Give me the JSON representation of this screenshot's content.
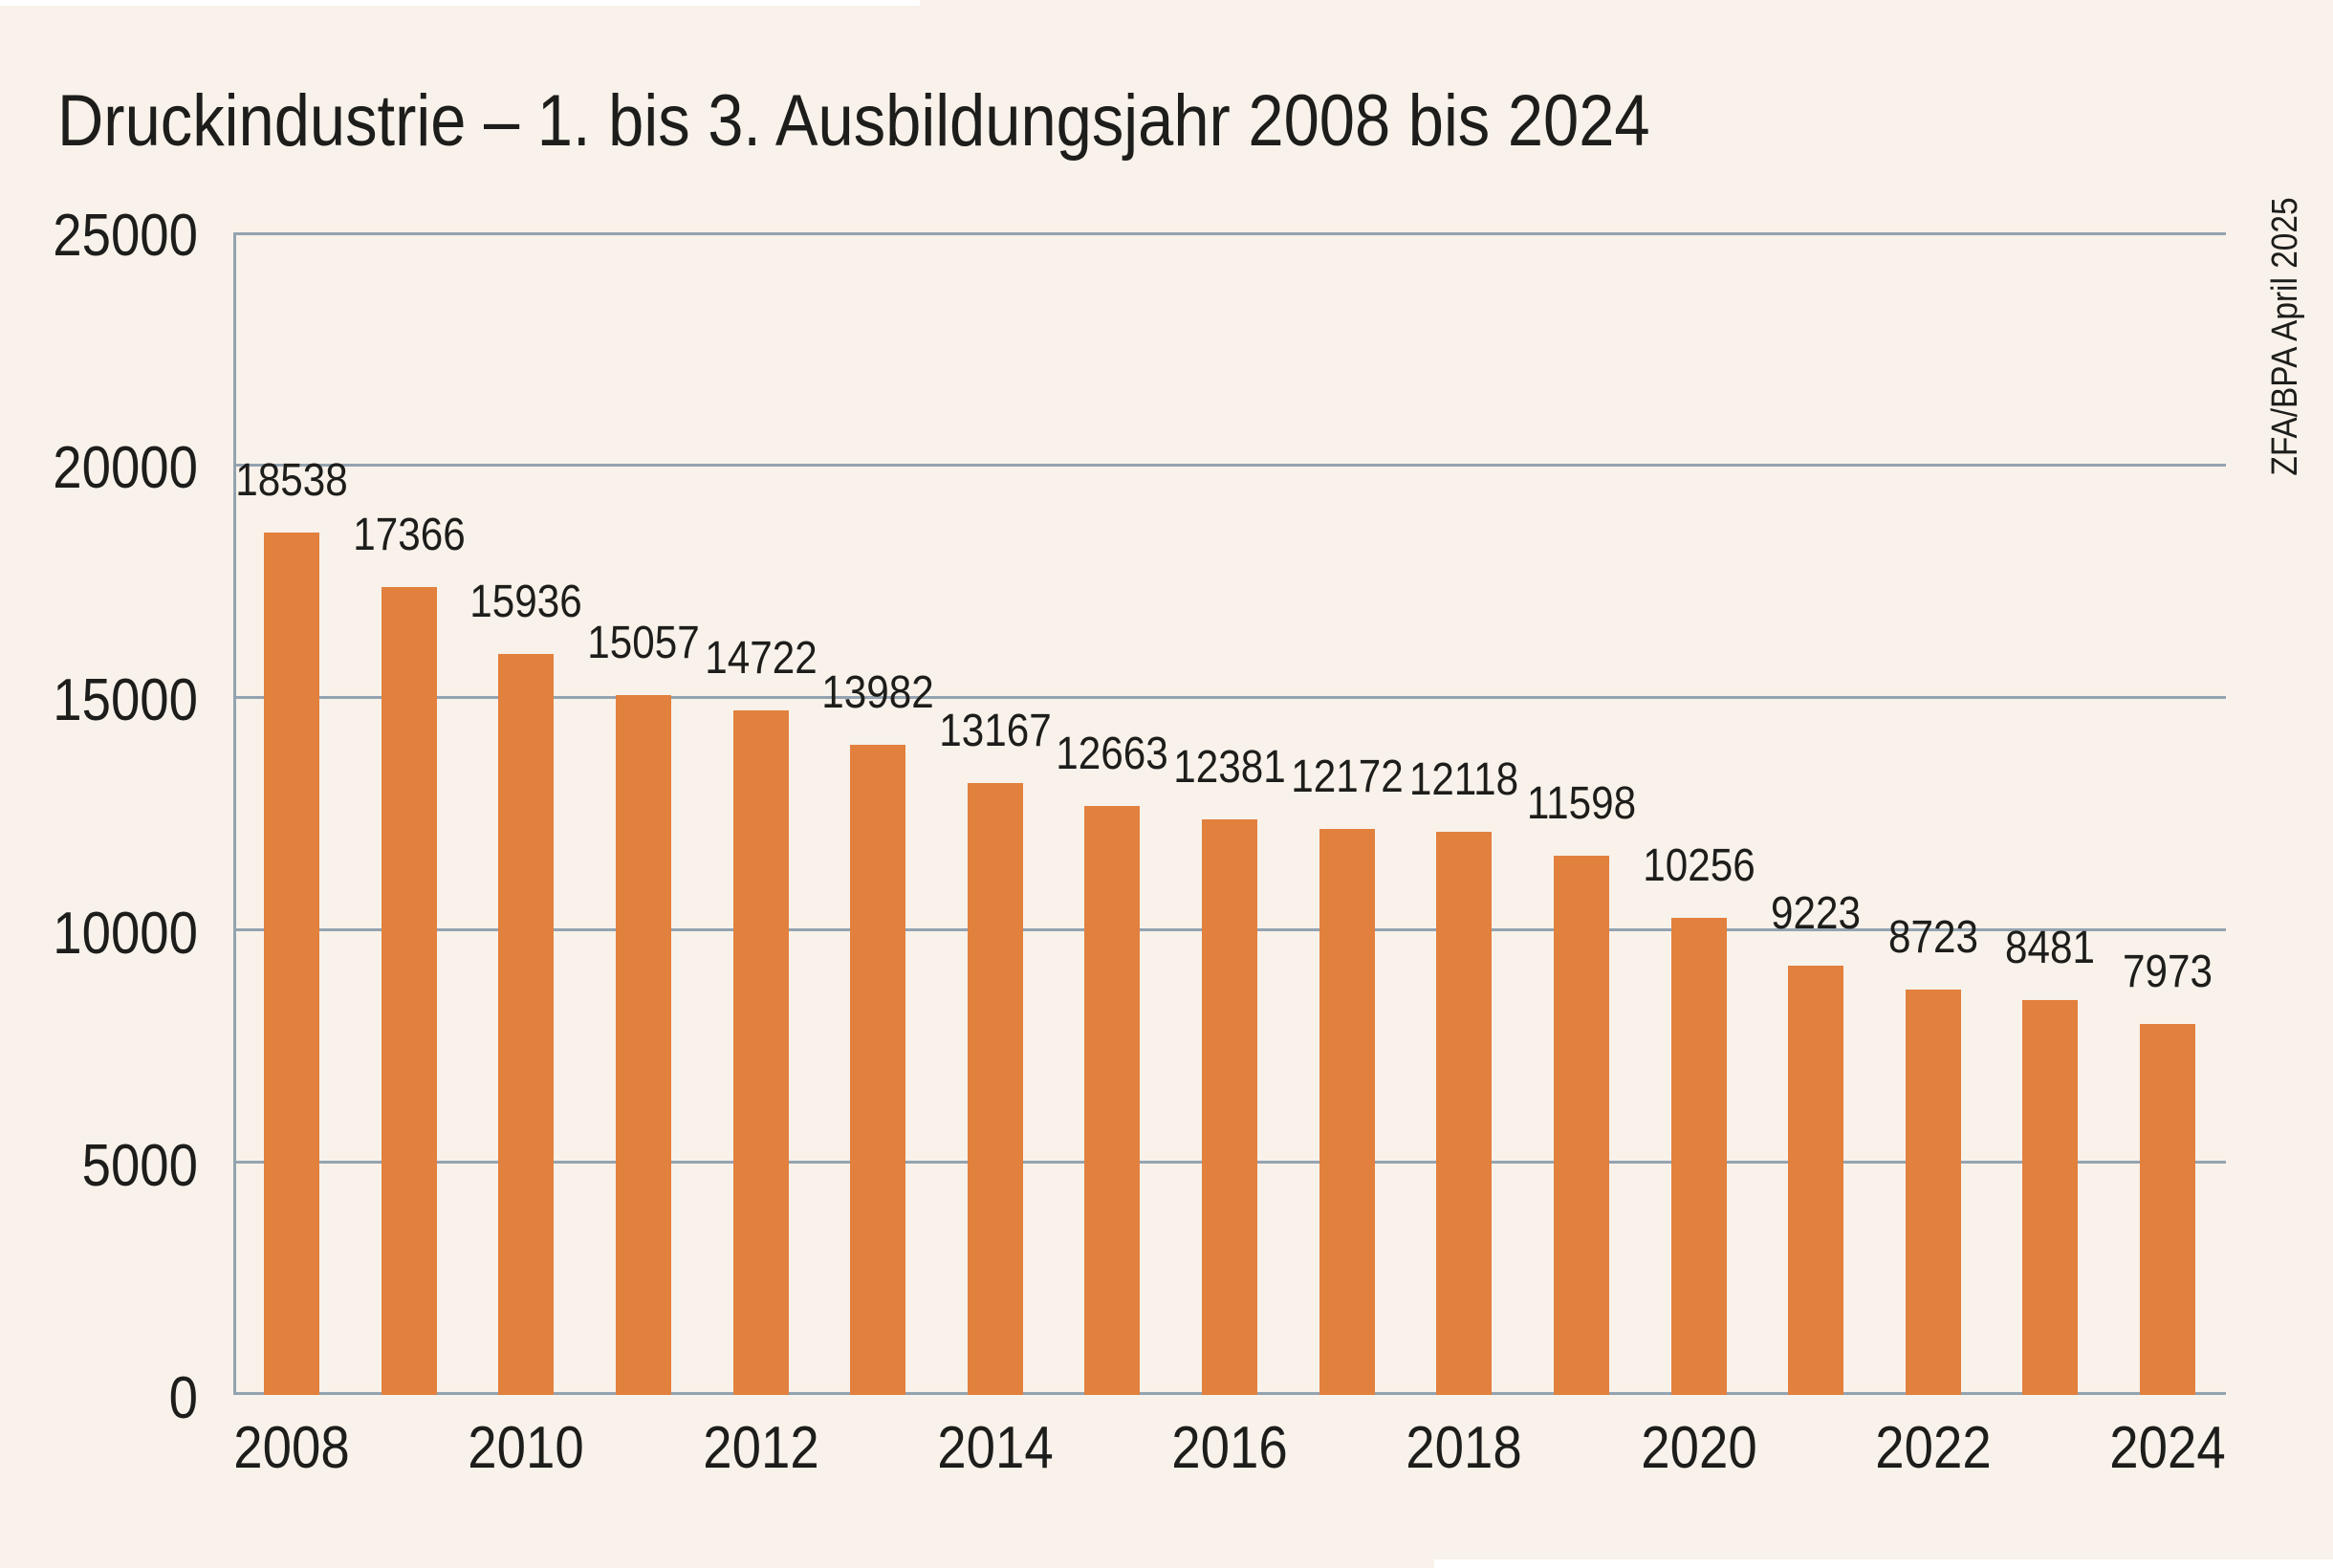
{
  "title": "Druckindustrie – 1. bis 3. Ausbildungsjahr 2008 bis 2024",
  "source_note": "ZFA/BPA April 2025",
  "colors": {
    "background": "#F8F2EA",
    "bar": "#E2803E",
    "grid": "#94A3B1",
    "text": "#1D1D1B",
    "edge_strip": "#FFFFFF"
  },
  "chart_data": {
    "type": "bar",
    "title": "Druckindustrie – 1. bis 3. Ausbildungsjahr 2008 bis 2024",
    "categories": [
      2008,
      2009,
      2010,
      2011,
      2012,
      2013,
      2014,
      2015,
      2016,
      2017,
      2018,
      2019,
      2020,
      2021,
      2022,
      2023,
      2024
    ],
    "values": [
      18538,
      17366,
      15936,
      15057,
      14722,
      13982,
      13167,
      12663,
      12381,
      12172,
      12118,
      11598,
      10256,
      9223,
      8723,
      8481,
      7973
    ],
    "data_labels": [
      18538,
      17366,
      15936,
      15057,
      14722,
      13982,
      13167,
      12663,
      12381,
      12172,
      12118,
      11598,
      10256,
      9223,
      8723,
      8481,
      7973
    ],
    "xlabel": "",
    "ylabel": "",
    "ylim": [
      0,
      25000
    ],
    "yticks": [
      25000,
      20000,
      15000,
      10000,
      5000,
      0
    ],
    "xticks_shown": [
      "2008",
      "2010",
      "2012",
      "2014",
      "2016",
      "2018",
      "2020",
      "2022",
      "2024"
    ],
    "grid": true,
    "legend": false,
    "bar_color": "#E2803E",
    "annotation": "ZFA/BPA April 2025"
  }
}
